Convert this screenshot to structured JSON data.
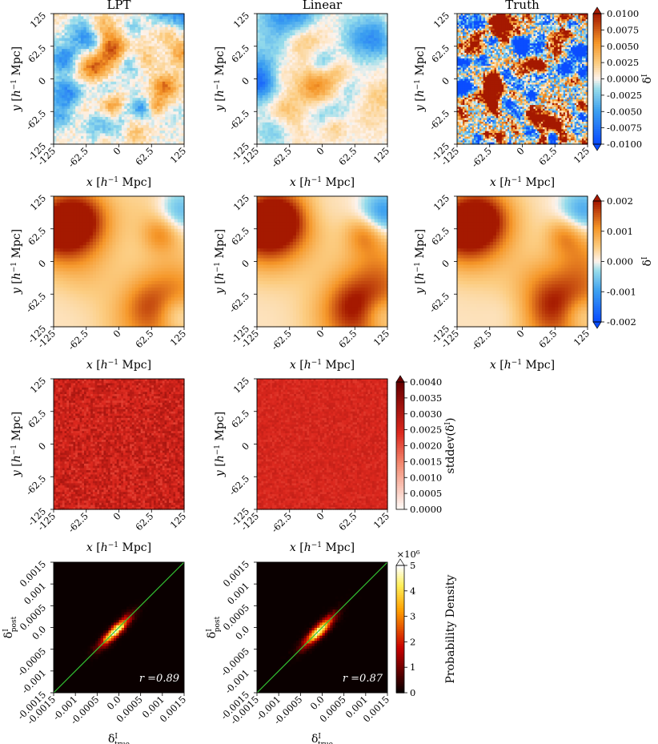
{
  "chart_data": [
    {
      "type": "heatmap",
      "title": "LPT",
      "xlabel": "x [h⁻¹ Mpc]",
      "ylabel": "y [h⁻¹ Mpc]",
      "xticks": [
        "-125",
        "-62.5",
        "0",
        "62.5",
        "125"
      ],
      "yticks": [
        "-125",
        "-62.5",
        "0",
        "62.5",
        "125"
      ],
      "xlim": [
        -125,
        125
      ],
      "ylim": [
        -125,
        125
      ],
      "cmap": "diverging-blue-orange",
      "clim": [
        -0.01,
        0.01
      ]
    },
    {
      "type": "heatmap",
      "title": "Linear",
      "xlabel": "x [h⁻¹ Mpc]",
      "ylabel": "y [h⁻¹ Mpc]",
      "xticks": [
        "-125",
        "-62.5",
        "0",
        "62.5",
        "125"
      ],
      "yticks": [
        "-125",
        "-62.5",
        "0",
        "62.5",
        "125"
      ],
      "xlim": [
        -125,
        125
      ],
      "ylim": [
        -125,
        125
      ],
      "cmap": "diverging-blue-orange",
      "clim": [
        -0.01,
        0.01
      ]
    },
    {
      "type": "heatmap",
      "title": "Truth",
      "xlabel": "x [h⁻¹ Mpc]",
      "ylabel": "y [h⁻¹ Mpc]",
      "xticks": [
        "-125",
        "-62.5",
        "0",
        "62.5",
        "125"
      ],
      "yticks": [
        "-125",
        "-62.5",
        "0",
        "62.5",
        "125"
      ],
      "xlim": [
        -125,
        125
      ],
      "ylim": [
        -125,
        125
      ],
      "cmap": "diverging-blue-orange",
      "clim": [
        -0.01,
        0.01
      ],
      "colorbar": {
        "label": "δᴵ",
        "ticks": [
          "0.0100",
          "0.0075",
          "0.0050",
          "0.0025",
          "0.0000",
          "-0.0025",
          "-0.0050",
          "-0.0075",
          "-0.0100"
        ]
      }
    },
    {
      "type": "heatmap",
      "xlabel": "x [h⁻¹ Mpc]",
      "ylabel": "y [h⁻¹ Mpc]",
      "xticks": [
        "-125",
        "-62.5",
        "0",
        "62.5",
        "125"
      ],
      "yticks": [
        "-125",
        "-62.5",
        "0",
        "62.5",
        "125"
      ],
      "xlim": [
        -125,
        125
      ],
      "ylim": [
        -125,
        125
      ],
      "cmap": "diverging-blue-orange",
      "clim": [
        -0.002,
        0.002
      ]
    },
    {
      "type": "heatmap",
      "xlabel": "x [h⁻¹ Mpc]",
      "ylabel": "y [h⁻¹ Mpc]",
      "xticks": [
        "-125",
        "-62.5",
        "0",
        "62.5",
        "125"
      ],
      "yticks": [
        "-125",
        "-62.5",
        "0",
        "62.5",
        "125"
      ],
      "xlim": [
        -125,
        125
      ],
      "ylim": [
        -125,
        125
      ],
      "cmap": "diverging-blue-orange",
      "clim": [
        -0.002,
        0.002
      ]
    },
    {
      "type": "heatmap",
      "xlabel": "x [h⁻¹ Mpc]",
      "ylabel": "y [h⁻¹ Mpc]",
      "xticks": [
        "-125",
        "-62.5",
        "0",
        "62.5",
        "125"
      ],
      "yticks": [
        "-125",
        "-62.5",
        "0",
        "62.5",
        "125"
      ],
      "xlim": [
        -125,
        125
      ],
      "ylim": [
        -125,
        125
      ],
      "cmap": "diverging-blue-orange",
      "clim": [
        -0.002,
        0.002
      ],
      "colorbar": {
        "label": "δᴵ",
        "ticks": [
          "0.002",
          "0.001",
          "0.000",
          "-0.001",
          "-0.002"
        ]
      }
    },
    {
      "type": "heatmap",
      "xlabel": "x [h⁻¹ Mpc]",
      "ylabel": "y [h⁻¹ Mpc]",
      "xticks": [
        "-125",
        "-62.5",
        "0",
        "62.5",
        "125"
      ],
      "yticks": [
        "-125",
        "-62.5",
        "0",
        "62.5",
        "125"
      ],
      "xlim": [
        -125,
        125
      ],
      "ylim": [
        -125,
        125
      ],
      "cmap": "reds",
      "clim": [
        0,
        0.004
      ]
    },
    {
      "type": "heatmap",
      "xlabel": "x [h⁻¹ Mpc]",
      "ylabel": "y [h⁻¹ Mpc]",
      "xticks": [
        "-125",
        "-62.5",
        "0",
        "62.5",
        "125"
      ],
      "yticks": [
        "-125",
        "-62.5",
        "0",
        "62.5",
        "125"
      ],
      "xlim": [
        -125,
        125
      ],
      "ylim": [
        -125,
        125
      ],
      "cmap": "reds",
      "clim": [
        0,
        0.004
      ],
      "colorbar": {
        "label": "stddev(δᴵ)",
        "ticks": [
          "0.0040",
          "0.0035",
          "0.0030",
          "0.0025",
          "0.0020",
          "0.0015",
          "0.0010",
          "0.0005",
          "0.0000"
        ]
      }
    },
    {
      "type": "heatmap",
      "xlabel": "δᴵ true",
      "ylabel": "δᴵ post",
      "xticks": [
        "-0.0015",
        "-0.001",
        "-0.0005",
        "0.0",
        "0.0005",
        "0.001",
        "0.0015"
      ],
      "yticks": [
        "-0.0015",
        "-0.001",
        "-0.0005",
        "0.0",
        "0.0005",
        "0.001",
        "0.0015"
      ],
      "xlim": [
        -0.0015,
        0.0015
      ],
      "ylim": [
        -0.0015,
        0.0015
      ],
      "cmap": "hot",
      "annotation": "r =0.89",
      "r": 0.89,
      "reference_line": "y = x"
    },
    {
      "type": "heatmap",
      "xlabel": "δᴵ true",
      "ylabel": "δᴵ post",
      "xticks": [
        "-0.0015",
        "-0.001",
        "-0.0005",
        "0.0",
        "0.0005",
        "0.001",
        "0.0015"
      ],
      "yticks": [
        "-0.0015",
        "-0.001",
        "-0.0005",
        "0.0",
        "0.0005",
        "0.001",
        "0.0015"
      ],
      "xlim": [
        -0.0015,
        0.0015
      ],
      "ylim": [
        -0.0015,
        0.0015
      ],
      "cmap": "hot",
      "annotation": "r =0.87",
      "r": 0.87,
      "reference_line": "y = x",
      "colorbar": {
        "label": "Probability Density",
        "exponent": "×10⁶",
        "ticks": [
          "5",
          "4",
          "3",
          "2",
          "1",
          "0"
        ]
      }
    }
  ],
  "colors": {
    "reference_line": "#34c734",
    "zero_color": "#fdf3ec",
    "negative": "#0a4dff",
    "positive": "#cc2200"
  }
}
